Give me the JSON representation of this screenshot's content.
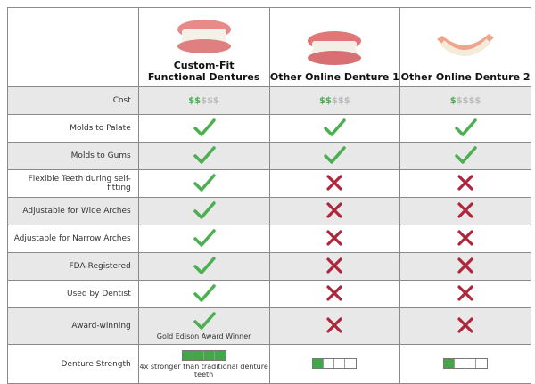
{
  "columns": [
    "Custom-Fit Functional Dentures",
    "Other Online Denture 1",
    "Other Online Denture 2"
  ],
  "column_title_lines": [
    [
      "Custom-Fit",
      "Functional Dentures"
    ],
    [
      "Other Online Denture 1"
    ],
    [
      "Other Online Denture 2"
    ]
  ],
  "cost": {
    "label": "Cost",
    "green": [
      "$$",
      "$$",
      "$"
    ],
    "gray": [
      "$$$",
      "$$$",
      "$$$$"
    ]
  },
  "rows": [
    {
      "label": "Molds to Palate",
      "values": [
        "check",
        "check",
        "check"
      ]
    },
    {
      "label": "Molds to Gums",
      "values": [
        "check",
        "check",
        "check"
      ]
    },
    {
      "label": "Flexible Teeth during self-fitting",
      "values": [
        "check",
        "cross",
        "cross"
      ]
    },
    {
      "label": "Adjustable for Wide Arches",
      "values": [
        "check",
        "cross",
        "cross"
      ]
    },
    {
      "label": "Adjustable for Narrow Arches",
      "values": [
        "check",
        "cross",
        "cross"
      ]
    },
    {
      "label": "FDA-Registered",
      "values": [
        "check",
        "cross",
        "cross"
      ]
    },
    {
      "label": "Used by Dentist",
      "values": [
        "check",
        "cross",
        "cross"
      ]
    },
    {
      "label": "Award-winning",
      "values": [
        "check",
        "cross",
        "cross"
      ],
      "note": "Gold Edison Award Winner"
    }
  ],
  "strength": {
    "label": "Denture Strength",
    "levels": [
      4,
      1,
      1
    ],
    "max": 4,
    "note": "4x stronger than traditional denture teeth"
  },
  "colors": {
    "check": "#4caf50",
    "cross": "#b0243c",
    "bar": "#3ea84a"
  }
}
